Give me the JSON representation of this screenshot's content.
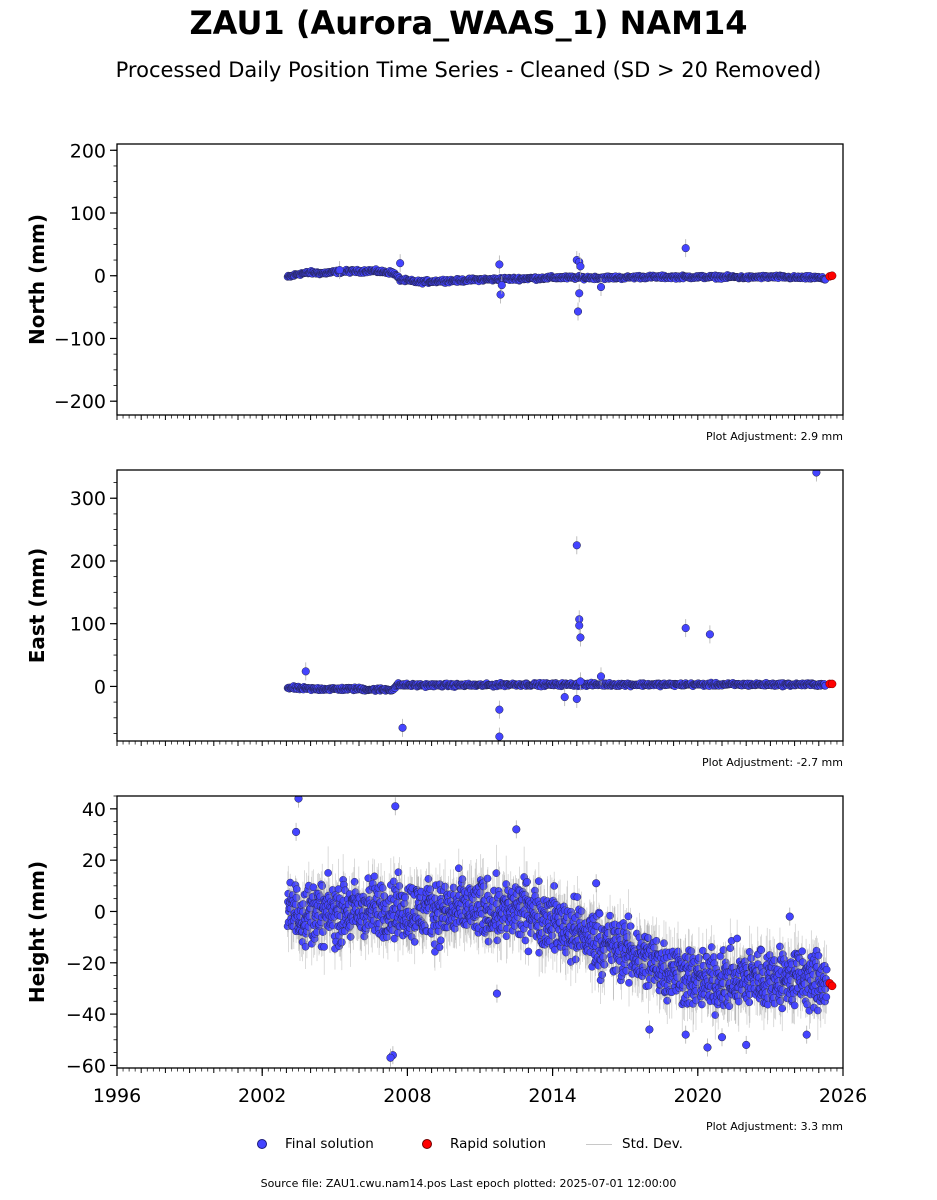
{
  "title": "ZAU1 (Aurora_WAAS_1) NAM14",
  "subtitle": "Processed Daily Position Time Series - Cleaned (SD > 20 Removed)",
  "legend": {
    "final": "Final solution",
    "rapid": "Rapid solution",
    "std": "Std. Dev."
  },
  "footer": "Source file: ZAU1.cwu.nam14.pos  Last epoch plotted: 2025-07-01 12:00:00",
  "colors": {
    "final": "#4444ff",
    "rapid": "#ff0000",
    "stddev": "#c8c8c8"
  },
  "chart_data": [
    {
      "type": "scatter",
      "ylabel": "North (mm)",
      "adjustment": "Plot Adjustment: 2.9 mm",
      "xlim": [
        1996,
        2026
      ],
      "ylim": [
        -222,
        210
      ],
      "yticks": [
        -200,
        -100,
        0,
        100,
        200
      ],
      "ytick_labels": [
        "−200",
        "−100",
        "0",
        "100",
        "200"
      ],
      "series": [
        {
          "name": "Final solution",
          "x": [
            2003.1,
            2003.5,
            2004.0,
            2004.5,
            2005.0,
            2005.5,
            2006.0,
            2006.5,
            2007.0,
            2007.4,
            2007.7,
            2008.0,
            2008.5,
            2009.0,
            2009.5,
            2010.0,
            2010.5,
            2011.0,
            2011.5,
            2012.0,
            2012.5,
            2013.0,
            2013.5,
            2014.0,
            2014.5,
            2015.0,
            2015.5,
            2016.0,
            2016.5,
            2017.0,
            2017.5,
            2018.0,
            2018.5,
            2019.0,
            2019.5,
            2020.0,
            2020.5,
            2021.0,
            2021.5,
            2022.0,
            2022.5,
            2023.0,
            2023.5,
            2024.0,
            2024.5,
            2025.0,
            2025.3,
            2007.7,
            2011.8,
            2011.85,
            2011.9,
            2015.0,
            2015.1,
            2015.05,
            2015.1,
            2015.15,
            2019.5,
            2016.0,
            2005.2
          ],
          "y": [
            -2,
            3,
            5,
            4,
            6,
            7,
            7,
            8,
            6,
            5,
            -6,
            -8,
            -10,
            -9,
            -8,
            -8,
            -7,
            -6,
            -6,
            -5,
            -5,
            -4,
            -4,
            -3,
            -3,
            -3,
            -3,
            -3,
            -3,
            -3,
            -2,
            -2,
            -2,
            -2,
            -2,
            -2,
            -2,
            -2,
            -2,
            -3,
            -2,
            -2,
            -2,
            -3,
            -3,
            -3,
            -6,
            20,
            18,
            -30,
            -15,
            25,
            22,
            -57,
            -28,
            15,
            44,
            -18,
            9
          ]
        }
      ],
      "rapid": {
        "x": [
          2025.45,
          2025.55
        ],
        "y": [
          -1,
          0
        ]
      }
    },
    {
      "type": "scatter",
      "ylabel": "East (mm)",
      "adjustment": "Plot Adjustment: -2.7 mm",
      "xlim": [
        1996,
        2026
      ],
      "ylim": [
        -87,
        345
      ],
      "yticks": [
        0,
        100,
        200,
        300
      ],
      "ytick_labels": [
        "0",
        "100",
        "200",
        "300"
      ],
      "series": [
        {
          "name": "Final solution",
          "x": [
            2003.1,
            2003.5,
            2004.0,
            2004.5,
            2005.0,
            2005.5,
            2006.0,
            2006.5,
            2007.0,
            2007.4,
            2007.6,
            2008.0,
            2008.5,
            2009.0,
            2009.5,
            2010.0,
            2010.5,
            2011.0,
            2011.5,
            2012.0,
            2012.5,
            2013.0,
            2013.5,
            2014.0,
            2014.5,
            2015.0,
            2015.5,
            2016.0,
            2016.5,
            2017.0,
            2017.5,
            2018.0,
            2018.5,
            2019.0,
            2019.5,
            2020.0,
            2020.5,
            2021.0,
            2021.5,
            2022.0,
            2022.5,
            2023.0,
            2023.5,
            2024.0,
            2024.5,
            2025.0,
            2025.2,
            2003.8,
            2007.8,
            2011.8,
            2011.8,
            2015.0,
            2015.1,
            2015.1,
            2015.15,
            2015.15,
            2015.0,
            2014.5,
            2019.5,
            2020.5,
            2016.0,
            2024.9
          ],
          "y": [
            -2,
            -3,
            -4,
            -4,
            -4,
            -4,
            -4,
            -5,
            -5,
            -5,
            3,
            2,
            2,
            2,
            2,
            2,
            2,
            2,
            2,
            3,
            3,
            3,
            3,
            3,
            3,
            3,
            3,
            3,
            3,
            3,
            3,
            3,
            3,
            3,
            3,
            3,
            3,
            3,
            3,
            3,
            3,
            3,
            3,
            3,
            3,
            3,
            3,
            24,
            -66,
            -37,
            -80,
            225,
            107,
            97,
            78,
            8,
            -20,
            -17,
            93,
            83,
            16,
            341
          ]
        }
      ],
      "rapid": {
        "x": [
          2025.45,
          2025.55
        ],
        "y": [
          4,
          4
        ]
      }
    },
    {
      "type": "scatter",
      "ylabel": "Height (mm)",
      "adjustment": "Plot Adjustment: 3.3 mm",
      "xlim": [
        1996,
        2026
      ],
      "ylim": [
        -61,
        45
      ],
      "yticks": [
        -60,
        -40,
        -20,
        0,
        20,
        40
      ],
      "ytick_labels": [
        "−60",
        "−40",
        "−20",
        "0",
        "20",
        "40"
      ],
      "xticks": [
        1996,
        2002,
        2008,
        2014,
        2020,
        2026
      ],
      "xtick_labels": [
        "1996",
        "2002",
        "2008",
        "2014",
        "2020",
        "2026"
      ],
      "series": [
        {
          "name": "Final solution",
          "trend": {
            "x": [
              2003.0,
              2005.0,
              2007.0,
              2009.0,
              2011.0,
              2013.0,
              2015.0,
              2016.5,
              2018.0,
              2019.0,
              2020.0,
              2021.0,
              2022.0,
              2023.0,
              2024.0,
              2025.3
            ],
            "y": [
              0,
              -1,
              1,
              0,
              1,
              0,
              -8,
              -14,
              -19,
              -23,
              -27,
              -27,
              -26,
              -26,
              -26,
              -28
            ],
            "spread": 10
          },
          "x": [
            2003.5,
            2007.5,
            2007.4,
            2007.3,
            2003.4,
            2011.7,
            2012.5,
            2015.8,
            2018.0,
            2019.5,
            2020.4,
            2021.0,
            2022.0,
            2024.5,
            2023.8
          ],
          "y": [
            44,
            41,
            -56,
            -57,
            31,
            -32,
            32,
            11,
            -46,
            -48,
            -53,
            -49,
            -52,
            -48,
            -2
          ]
        }
      ],
      "rapid": {
        "x": [
          2025.45,
          2025.55
        ],
        "y": [
          -28,
          -29
        ]
      }
    }
  ]
}
